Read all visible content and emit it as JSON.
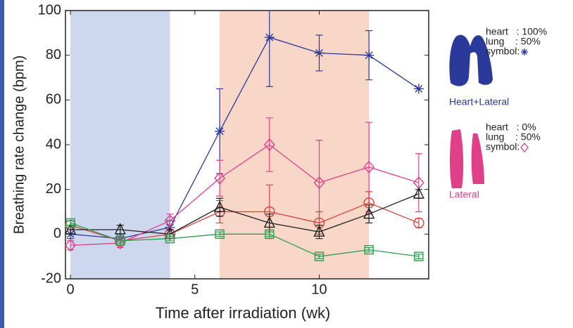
{
  "chart_data": {
    "type": "line",
    "xlabel": "Time after irradiation (wk)",
    "ylabel": "Breathing rate change (bpm)",
    "x": [
      0,
      2,
      4,
      6,
      8,
      10,
      12,
      14
    ],
    "xlim": [
      -0.2,
      14.4
    ],
    "xticks": [
      0,
      5,
      10
    ],
    "ylim": [
      -20,
      100
    ],
    "yticks": [
      -20,
      0,
      20,
      40,
      60,
      80,
      100
    ],
    "shaded_regions": [
      {
        "xlim": [
          0,
          4
        ],
        "color": "#cdd8ee"
      },
      {
        "xlim": [
          6,
          12
        ],
        "color": "#f8d6c8"
      }
    ],
    "series": [
      {
        "marker": "asterisk",
        "color": "#2b3a9a",
        "values": [
          0,
          -2,
          3,
          46,
          88,
          81,
          80,
          65
        ],
        "errors": [
          2,
          2,
          3,
          19,
          22,
          8,
          11,
          0
        ]
      },
      {
        "marker": "diamond",
        "color": "#e0408a",
        "values": [
          -5,
          -4,
          6,
          25,
          40,
          23,
          30,
          23
        ],
        "errors": [
          2,
          2,
          3,
          8,
          12,
          19,
          20,
          13
        ]
      },
      {
        "marker": "circle",
        "color": "#d9403a",
        "values": [
          4,
          -3,
          0,
          10,
          10,
          5,
          14,
          5
        ],
        "errors": [
          2,
          2,
          2,
          5,
          12,
          5,
          5,
          2
        ]
      },
      {
        "marker": "triangle",
        "color": "#222222",
        "values": [
          2,
          2,
          0,
          12,
          5,
          1,
          9,
          18
        ],
        "errors": [
          2,
          2,
          2,
          4,
          4,
          3,
          4,
          2
        ]
      },
      {
        "marker": "square",
        "color": "#2aa050",
        "values": [
          5,
          -3,
          -2,
          0,
          0,
          -10,
          -7,
          -10
        ],
        "errors": [
          1,
          1,
          1,
          1,
          1,
          1,
          1,
          1
        ]
      }
    ],
    "legend": [
      {
        "lines": [
          "heart   : 100%",
          "lung    : 50%",
          "symbol:"
        ],
        "label": "Heart+Lateral",
        "color": "#2b3a9a"
      },
      {
        "lines": [
          "heart   : 0%",
          "lung    : 50%",
          "symbol:"
        ],
        "label": "Lateral",
        "color": "#e0408a"
      }
    ]
  }
}
